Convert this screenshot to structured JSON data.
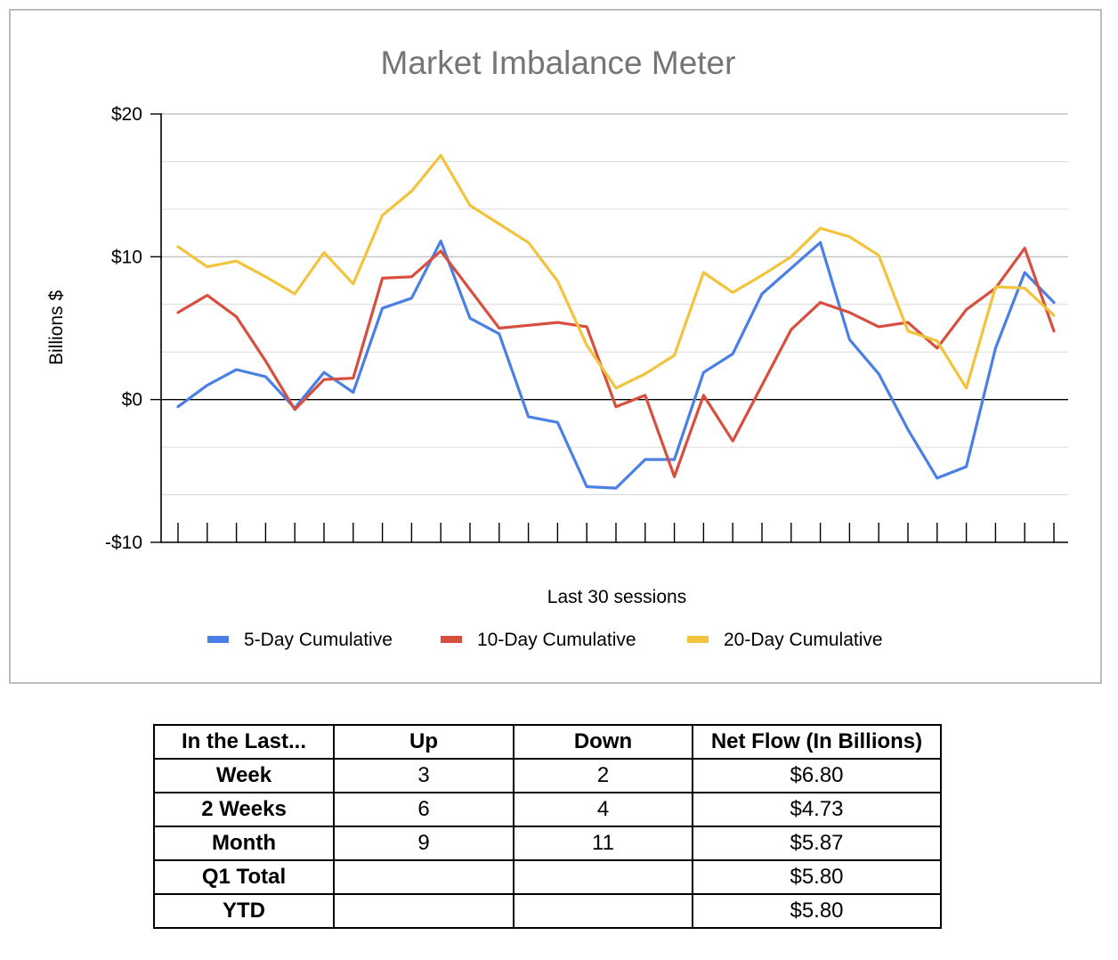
{
  "chart_data": {
    "type": "line",
    "title": "Market Imbalance Meter",
    "xlabel": "Last 30 sessions",
    "ylabel": "Billions $",
    "ylim": [
      -10,
      20
    ],
    "yticks": [
      -10,
      0,
      10,
      20
    ],
    "ytick_labels": [
      "-$10",
      "$0",
      "$10",
      "$20"
    ],
    "grid": true,
    "legend_position": "bottom",
    "x": [
      1,
      2,
      3,
      4,
      5,
      6,
      7,
      8,
      9,
      10,
      11,
      12,
      13,
      14,
      15,
      16,
      17,
      18,
      19,
      20,
      21,
      22,
      23,
      24,
      25,
      26,
      27,
      28,
      29,
      30,
      31
    ],
    "series": [
      {
        "name": "5-Day Cumulative",
        "color": "#4a7fe5",
        "values": [
          -0.5,
          1.0,
          2.1,
          1.6,
          -0.6,
          1.9,
          0.5,
          6.4,
          7.1,
          11.1,
          5.7,
          4.6,
          -1.2,
          -1.6,
          -6.1,
          -6.2,
          -4.2,
          -4.2,
          1.9,
          3.2,
          7.4,
          9.2,
          11.0,
          4.2,
          1.8,
          -2.1,
          -5.5,
          -4.7,
          3.6,
          8.9,
          6.8
        ]
      },
      {
        "name": "10-Day Cumulative",
        "color": "#d64f3f",
        "values": [
          6.1,
          7.3,
          5.8,
          2.7,
          -0.7,
          1.4,
          1.5,
          8.5,
          8.6,
          10.4,
          7.7,
          5.0,
          5.2,
          5.4,
          5.1,
          -0.5,
          0.3,
          -5.4,
          0.3,
          -2.9,
          1.0,
          4.9,
          6.8,
          6.1,
          5.1,
          5.4,
          3.6,
          6.3,
          7.8,
          10.6,
          4.8
        ]
      },
      {
        "name": "20-Day Cumulative",
        "color": "#f2c33c",
        "values": [
          10.7,
          9.3,
          9.7,
          8.6,
          7.4,
          10.3,
          8.1,
          12.9,
          14.6,
          17.1,
          13.6,
          12.3,
          11.0,
          8.3,
          3.8,
          0.8,
          1.8,
          3.1,
          8.9,
          7.5,
          8.7,
          10.0,
          12.0,
          11.4,
          10.1,
          4.8,
          4.1,
          0.8,
          7.9,
          7.8,
          5.9
        ]
      }
    ]
  },
  "table": {
    "headers": [
      "In the Last...",
      "Up",
      "Down",
      "Net Flow (In Billions)"
    ],
    "rows": [
      [
        "Week",
        "3",
        "2",
        "$6.80"
      ],
      [
        "2 Weeks",
        "6",
        "4",
        "$4.73"
      ],
      [
        "Month",
        "9",
        "11",
        "$5.87"
      ],
      [
        "Q1 Total",
        "",
        "",
        "$5.80"
      ],
      [
        "YTD",
        "",
        "",
        "$5.80"
      ]
    ]
  }
}
